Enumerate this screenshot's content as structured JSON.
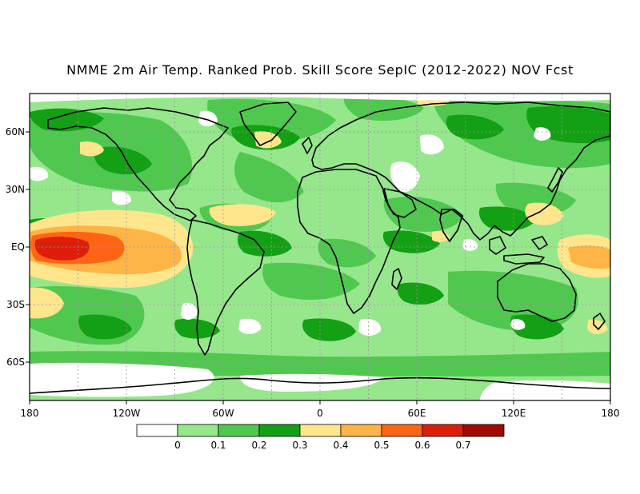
{
  "title": "NMME 2m Air Temp. Ranked Prob. Skill Score SepIC (2012-2022) NOV Fcst",
  "x_ticks": [
    {
      "lon": -180,
      "label": "180"
    },
    {
      "lon": -120,
      "label": "120W"
    },
    {
      "lon": -60,
      "label": "60W"
    },
    {
      "lon": 0,
      "label": "0"
    },
    {
      "lon": 60,
      "label": "60E"
    },
    {
      "lon": 120,
      "label": "120E"
    },
    {
      "lon": 180,
      "label": "180"
    }
  ],
  "y_ticks": [
    {
      "lat": 60,
      "label": "60N"
    },
    {
      "lat": 30,
      "label": "30N"
    },
    {
      "lat": 0,
      "label": "EQ"
    },
    {
      "lat": -30,
      "label": "30S"
    },
    {
      "lat": -60,
      "label": "60S"
    }
  ],
  "colorbar": {
    "colors": [
      "#ffffff",
      "#96e68c",
      "#50c850",
      "#14a014",
      "#ffe68c",
      "#ffb446",
      "#ff6414",
      "#dc1e0a",
      "#a00a00"
    ],
    "labels": [
      "0",
      "0.1",
      "0.2",
      "0.3",
      "0.4",
      "0.5",
      "0.6",
      "0.7"
    ]
  },
  "lon_range": [
    -180,
    180
  ],
  "lat_range": [
    -80,
    80
  ]
}
